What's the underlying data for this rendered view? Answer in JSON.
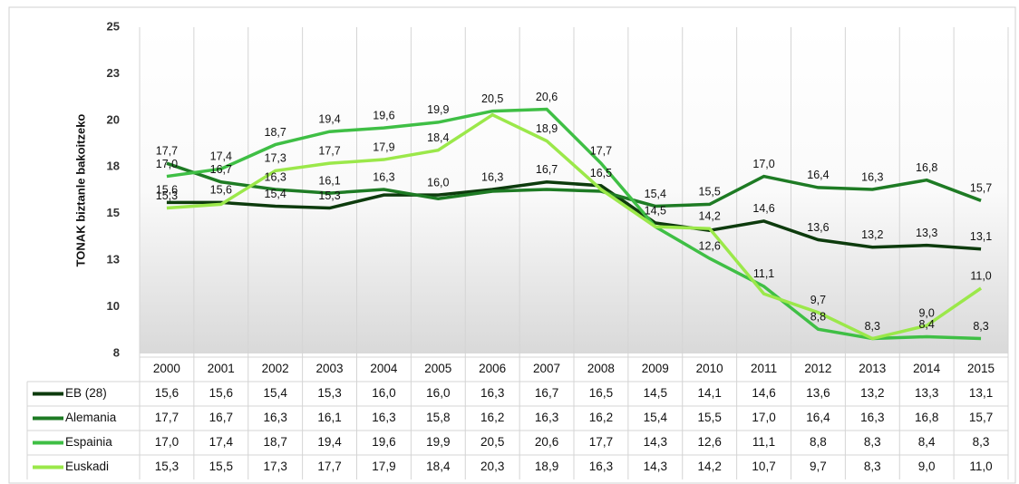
{
  "chart_data": {
    "type": "line",
    "y_label": "TONAK biztanle bakoitzeko",
    "categories": [
      "2000",
      "2001",
      "2002",
      "2003",
      "2004",
      "2005",
      "2006",
      "2007",
      "2008",
      "2009",
      "2010",
      "2011",
      "2012",
      "2013",
      "2014",
      "2015"
    ],
    "ylim": [
      7.5,
      25
    ],
    "yticks": [
      {
        "value": 7.5,
        "label": "8"
      },
      10,
      {
        "value": 12.5,
        "label": "13"
      },
      15,
      {
        "value": 17.5,
        "label": "18"
      },
      20,
      {
        "value": 22.5,
        "label": "23"
      },
      25
    ],
    "series": [
      {
        "name": "EB (28)",
        "color": "#0d3b0d",
        "values": [
          15.6,
          15.6,
          15.4,
          15.3,
          16.0,
          16.0,
          16.3,
          16.7,
          16.5,
          14.5,
          14.1,
          14.6,
          13.6,
          13.2,
          13.3,
          13.1
        ],
        "value_labels": [
          "15,6",
          "15,6",
          "15,4",
          "15,3",
          "16,0",
          "16,0",
          "16,3",
          "16,7",
          "16,5",
          "14,5",
          "14,1",
          "14,6",
          "13,6",
          "13,2",
          "13,3",
          "13,1"
        ],
        "point_labels": [
          "15,6",
          "15,6",
          "15,4",
          "15,3",
          null,
          "16,0",
          "16,3",
          "16,7",
          "16,5",
          "14,5",
          null,
          "14,6",
          "13,6",
          "13,2",
          "13,3",
          "13,1"
        ]
      },
      {
        "name": "Alemania",
        "color": "#1e7b24",
        "values": [
          17.7,
          16.7,
          16.3,
          16.1,
          16.3,
          15.8,
          16.2,
          16.3,
          16.2,
          15.4,
          15.5,
          17.0,
          16.4,
          16.3,
          16.8,
          15.7
        ],
        "value_labels": [
          "17,7",
          "16,7",
          "16,3",
          "16,1",
          "16,3",
          "15,8",
          "16,2",
          "16,3",
          "16,2",
          "15,4",
          "15,5",
          "17,0",
          "16,4",
          "16,3",
          "16,8",
          "15,7"
        ],
        "point_labels": [
          "17,7",
          "16,7",
          "16,3",
          "16,1",
          "16,3",
          null,
          null,
          null,
          null,
          "15,4",
          "15,5",
          "17,0",
          "16,4",
          "16,3",
          "16,8",
          "15,7"
        ]
      },
      {
        "name": "Espainia",
        "color": "#3fbf45",
        "values": [
          17.0,
          17.4,
          18.7,
          19.4,
          19.6,
          19.9,
          20.5,
          20.6,
          17.7,
          14.3,
          12.6,
          11.1,
          8.8,
          8.3,
          8.4,
          8.3
        ],
        "value_labels": [
          "17,0",
          "17,4",
          "18,7",
          "19,4",
          "19,6",
          "19,9",
          "20,5",
          "20,6",
          "17,7",
          "14,3",
          "12,6",
          "11,1",
          "8,8",
          "8,3",
          "8,4",
          "8,3"
        ],
        "point_labels": [
          "17,0",
          "17,4",
          "18,7",
          "19,4",
          "19,6",
          "19,9",
          "20,5",
          "20,6",
          "17,7",
          null,
          "12,6",
          "11,1",
          "8,8",
          "8,3",
          "8,4",
          "8,3"
        ]
      },
      {
        "name": "Euskadi",
        "color": "#9be84a",
        "values": [
          15.3,
          15.5,
          17.3,
          17.7,
          17.9,
          18.4,
          20.3,
          18.9,
          16.3,
          14.3,
          14.2,
          10.7,
          9.7,
          8.3,
          9.0,
          11.0
        ],
        "value_labels": [
          "15,3",
          "15,5",
          "17,3",
          "17,7",
          "17,9",
          "18,4",
          "20,3",
          "18,9",
          "16,3",
          "14,3",
          "14,2",
          "10,7",
          "9,7",
          "8,3",
          "9,0",
          "11,0"
        ],
        "point_labels": [
          "15,3",
          null,
          "17,3",
          "17,7",
          "17,9",
          "18,4",
          null,
          "18,9",
          null,
          null,
          "14,2",
          null,
          "9,7",
          null,
          "9,0",
          "11,0"
        ]
      }
    ]
  }
}
